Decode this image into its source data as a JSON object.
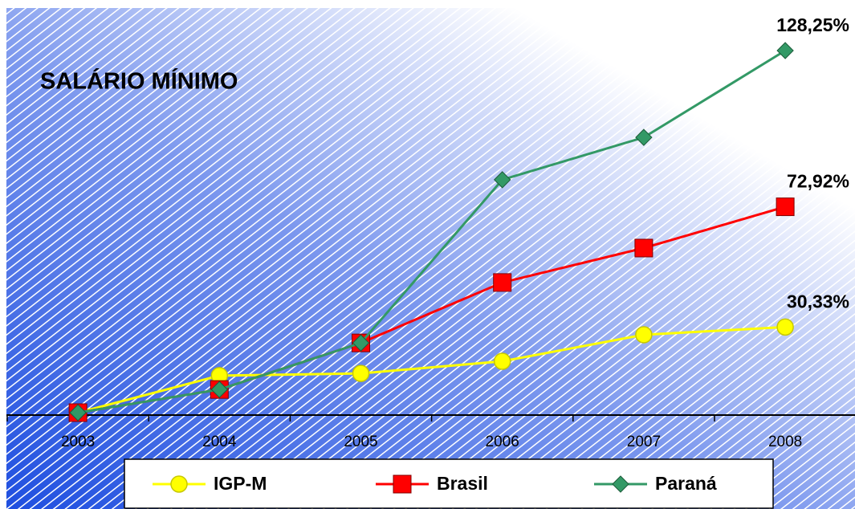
{
  "chart_data": {
    "type": "line",
    "title": "SALÁRIO MÍNIMO",
    "categories": [
      "2003",
      "2004",
      "2005",
      "2006",
      "2007",
      "2008"
    ],
    "series": [
      {
        "name": "IGP-M",
        "color": "#ffff00",
        "marker": "circle",
        "values": [
          0,
          13.1,
          13.9,
          18.2,
          27.6,
          30.33
        ],
        "value_labels": [
          null,
          null,
          null,
          null,
          null,
          "30,33%"
        ]
      },
      {
        "name": "Brasil",
        "color": "#ff0000",
        "marker": "square",
        "values": [
          0,
          8.2,
          24.7,
          46.1,
          58.3,
          72.92
        ],
        "value_labels": [
          null,
          null,
          null,
          null,
          null,
          "72,92%"
        ]
      },
      {
        "name": "Paraná",
        "color": "#339966",
        "marker": "diamond",
        "values": [
          0,
          8.2,
          24.7,
          82.5,
          97.5,
          128.25
        ],
        "value_labels": [
          null,
          null,
          null,
          null,
          null,
          "128,25%"
        ]
      }
    ],
    "legend": "bottom"
  }
}
